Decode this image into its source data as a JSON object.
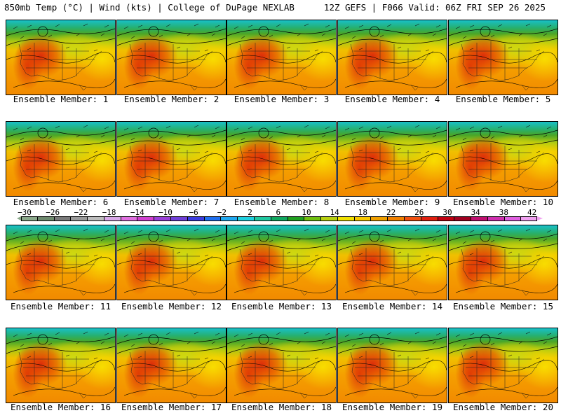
{
  "header": {
    "left": "850mb Temp (°C) | Wind (kts) | College of DuPage NEXLAB",
    "right": "12Z GEFS | F066 Valid: 06Z FRI SEP 26 2025"
  },
  "members": [
    "Ensemble Member: 1",
    "Ensemble Member: 2",
    "Ensemble Member: 3",
    "Ensemble Member: 4",
    "Ensemble Member: 5",
    "Ensemble Member: 6",
    "Ensemble Member: 7",
    "Ensemble Member: 8",
    "Ensemble Member: 9",
    "Ensemble Member: 10",
    "Ensemble Member: 11",
    "Ensemble Member: 12",
    "Ensemble Member: 13",
    "Ensemble Member: 14",
    "Ensemble Member: 15",
    "Ensemble Member: 16",
    "Ensemble Member: 17",
    "Ensemble Member: 18",
    "Ensemble Member: 19",
    "Ensemble Member: 20"
  ],
  "colorbar": {
    "labels": [
      "−30",
      "−26",
      "−22",
      "−18",
      "−14",
      "−10",
      "−6",
      "−2",
      "2",
      "6",
      "10",
      "14",
      "18",
      "22",
      "26",
      "30",
      "34",
      "38",
      "42"
    ],
    "colors": [
      "#8aa88a",
      "#6e8a6e",
      "#7a7a7a",
      "#9a9a9a",
      "#bdbdbd",
      "#d8a8e8",
      "#e070e0",
      "#d040d0",
      "#9a40d8",
      "#7040d8",
      "#3c3ce0",
      "#2070f0",
      "#20a8f0",
      "#20d0e0",
      "#20c8a0",
      "#10a860",
      "#20a020",
      "#70c010",
      "#b8d010",
      "#f0e000",
      "#f8c800",
      "#f0a000",
      "#f08000",
      "#f05010",
      "#e02010",
      "#c00010",
      "#a00020",
      "#c01070",
      "#d030b0",
      "#e060e0",
      "#f0a0f0"
    ]
  }
}
